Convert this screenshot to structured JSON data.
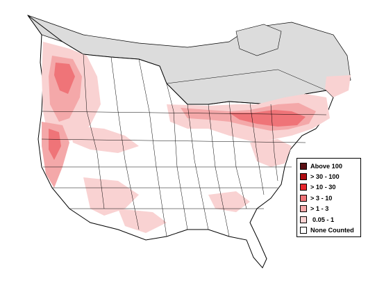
{
  "legend": {
    "items": [
      {
        "label": "Above 100",
        "color": "#5a0f14"
      },
      {
        "label": "> 30 - 100",
        "color": "#b00d12"
      },
      {
        "label": "> 10 - 30",
        "color": "#e8262c"
      },
      {
        "label": "> 3 - 10",
        "color": "#ef7478"
      },
      {
        "label": "> 1 - 3",
        "color": "#f4a8a9"
      },
      {
        "label": "0.05 - 1",
        "color": "#f9d2d2"
      },
      {
        "label": "None Counted",
        "color": "#ffffff"
      }
    ]
  },
  "colors": {
    "no_data_region": "#dcdcdc",
    "outline": "#000000",
    "background": "#ffffff"
  }
}
